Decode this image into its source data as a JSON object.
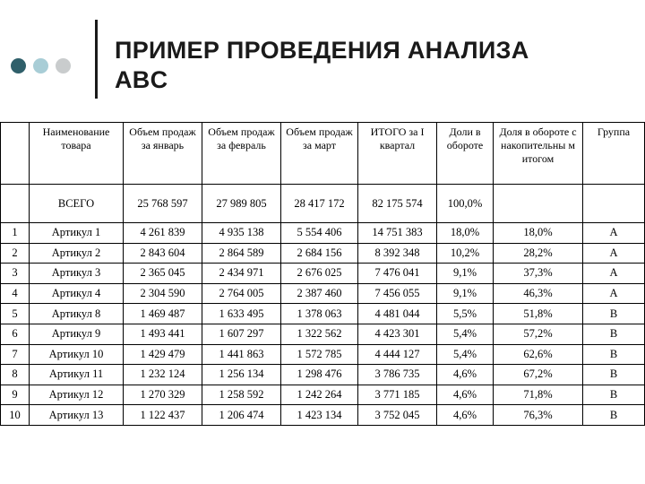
{
  "title": {
    "line1": "ПРИМЕР ПРОВЕДЕНИЯ  АНАЛИЗА",
    "line2": "ABC"
  },
  "table": {
    "headers": [
      "",
      "Наименование товара",
      "Объем продаж за январь",
      "Объем продаж за февраль",
      "Объем продаж за март",
      "ИТОГО за I квартал",
      "Доли в обороте",
      "Доля в обороте с накопительны м итогом",
      "Группа"
    ],
    "total": [
      "",
      "ВСЕГО",
      "25 768 597",
      "27 989 805",
      "28 417 172",
      "82 175 574",
      "100,0%",
      "",
      ""
    ],
    "rows": [
      [
        "1",
        "Артикул 1",
        "4 261 839",
        "4 935 138",
        "5 554 406",
        "14 751 383",
        "18,0%",
        "18,0%",
        "A"
      ],
      [
        "2",
        "Артикул 2",
        "2 843 604",
        "2 864 589",
        "2 684 156",
        "8 392 348",
        "10,2%",
        "28,2%",
        "A"
      ],
      [
        "3",
        "Артикул 3",
        "2 365 045",
        "2 434 971",
        "2 676 025",
        "7 476 041",
        "9,1%",
        "37,3%",
        "A"
      ],
      [
        "4",
        "Артикул 4",
        "2 304 590",
        "2 764 005",
        "2 387 460",
        "7 456 055",
        "9,1%",
        "46,3%",
        "A"
      ],
      [
        "5",
        "Артикул 8",
        "1 469 487",
        "1 633 495",
        "1 378 063",
        "4 481 044",
        "5,5%",
        "51,8%",
        "B"
      ],
      [
        "6",
        "Артикул 9",
        "1 493 441",
        "1 607 297",
        "1 322 562",
        "4 423 301",
        "5,4%",
        "57,2%",
        "B"
      ],
      [
        "7",
        "Артикул 10",
        "1 429 479",
        "1 441 863",
        "1 572 785",
        "4 444 127",
        "5,4%",
        "62,6%",
        "B"
      ],
      [
        "8",
        "Артикул 11",
        "1 232 124",
        "1 256 134",
        "1 298 476",
        "3 786 735",
        "4,6%",
        "67,2%",
        "B"
      ],
      [
        "9",
        "Артикул 12",
        "1 270 329",
        "1 258 592",
        "1 242 264",
        "3 771 185",
        "4,6%",
        "71,8%",
        "B"
      ],
      [
        "10",
        "Артикул 13",
        "1 122 437",
        "1 206 474",
        "1 423 134",
        "3 752 045",
        "4,6%",
        "76,3%",
        "B"
      ]
    ]
  }
}
